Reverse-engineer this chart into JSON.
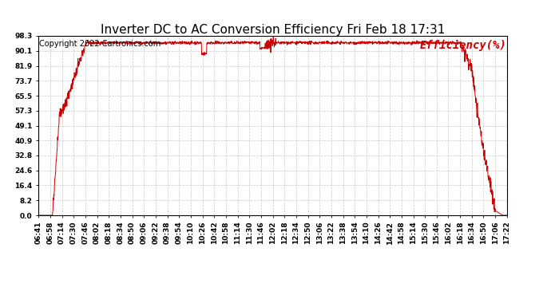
{
  "title": "Inverter DC to AC Conversion Efficiency Fri Feb 18 17:31",
  "copyright": "Copyright 2022 Cartronics.com",
  "legend_label": "Efficiency(%)",
  "yticks": [
    0.0,
    8.2,
    16.4,
    24.6,
    32.8,
    40.9,
    49.1,
    57.3,
    65.5,
    73.7,
    81.9,
    90.1,
    98.3
  ],
  "ymin": 0.0,
  "ymax": 98.3,
  "line_color": "#cc0000",
  "background_color": "#ffffff",
  "grid_color": "#bbbbbb",
  "title_fontsize": 11,
  "copyright_fontsize": 7,
  "legend_fontsize": 10,
  "tick_fontsize": 6.5,
  "xtick_labels": [
    "06:41",
    "06:58",
    "07:14",
    "07:30",
    "07:46",
    "08:02",
    "08:18",
    "08:34",
    "08:50",
    "09:06",
    "09:22",
    "09:38",
    "09:54",
    "10:10",
    "10:26",
    "10:42",
    "10:58",
    "11:14",
    "11:30",
    "11:46",
    "12:02",
    "12:18",
    "12:34",
    "12:50",
    "13:06",
    "13:22",
    "13:38",
    "13:54",
    "14:10",
    "14:26",
    "14:42",
    "14:58",
    "15:14",
    "15:30",
    "15:46",
    "16:02",
    "16:18",
    "16:34",
    "16:50",
    "17:06",
    "17:22"
  ]
}
